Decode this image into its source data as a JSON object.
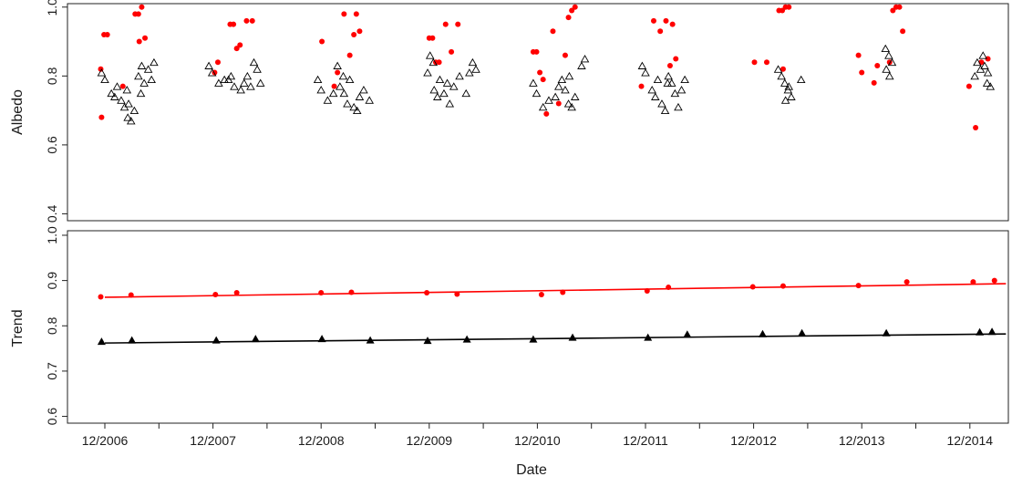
{
  "chart_data": [
    {
      "type": "scatter",
      "title": "",
      "xlabel": "",
      "ylabel": "Albedo",
      "ylim": [
        0.38,
        1.01
      ],
      "yticks": [
        "0.4",
        "0.6",
        "0.8",
        "1.0"
      ],
      "grid": false,
      "series": [
        {
          "marker": "filled-circle",
          "color": "#ff0000",
          "points": [
            [
              "12/2006",
              0.82
            ],
            [
              "12/2006",
              0.92
            ],
            [
              "12/2006",
              0.92
            ],
            [
              "12/2006",
              0.68
            ],
            [
              "2/2007",
              0.77
            ],
            [
              "3/2007",
              0.98
            ],
            [
              "4/2007",
              0.98
            ],
            [
              "4/2007",
              1.0
            ],
            [
              "4/2007",
              0.91
            ],
            [
              "4/2007",
              0.9
            ],
            [
              "12/2007",
              0.81
            ],
            [
              "1/2008",
              0.84
            ],
            [
              "2/2008",
              0.95
            ],
            [
              "2/2008",
              0.95
            ],
            [
              "3/2008",
              0.88
            ],
            [
              "3/2008",
              0.89
            ],
            [
              "4/2008",
              0.96
            ],
            [
              "4/2008",
              0.96
            ],
            [
              "12/2008",
              0.9
            ],
            [
              "1/2009",
              0.77
            ],
            [
              "2/2009",
              0.81
            ],
            [
              "3/2009",
              0.86
            ],
            [
              "3/2009",
              0.98
            ],
            [
              "4/2009",
              0.98
            ],
            [
              "4/2009",
              0.93
            ],
            [
              "4/2009",
              0.92
            ],
            [
              "12/2009",
              0.91
            ],
            [
              "12/2009",
              0.91
            ],
            [
              "1/2010",
              0.84
            ],
            [
              "1/2010",
              0.84
            ],
            [
              "2/2010",
              0.87
            ],
            [
              "2/2010",
              0.95
            ],
            [
              "3/2010",
              0.95
            ],
            [
              "12/2010",
              0.87
            ],
            [
              "12/2010",
              0.87
            ],
            [
              "12/2010",
              0.81
            ],
            [
              "1/2011",
              0.79
            ],
            [
              "1/2011",
              0.69
            ],
            [
              "2/2011",
              0.72
            ],
            [
              "2/2011",
              0.93
            ],
            [
              "3/2011",
              0.86
            ],
            [
              "3/2011",
              0.97
            ],
            [
              "4/2011",
              0.99
            ],
            [
              "4/2011",
              1.0
            ],
            [
              "12/2011",
              0.77
            ],
            [
              "1/2012",
              0.96
            ],
            [
              "2/2012",
              0.96
            ],
            [
              "2/2012",
              0.93
            ],
            [
              "3/2012",
              0.95
            ],
            [
              "3/2012",
              0.85
            ],
            [
              "3/2012",
              0.83
            ],
            [
              "12/2012",
              0.84
            ],
            [
              "1/2013",
              0.84
            ],
            [
              "3/2013",
              0.99
            ],
            [
              "3/2013",
              0.99
            ],
            [
              "4/2013",
              1.0
            ],
            [
              "4/2013",
              1.0
            ],
            [
              "3/2013",
              0.82
            ],
            [
              "12/2013",
              0.86
            ],
            [
              "12/2013",
              0.81
            ],
            [
              "1/2014",
              0.78
            ],
            [
              "2/2014",
              0.83
            ],
            [
              "3/2014",
              0.84
            ],
            [
              "3/2014",
              0.99
            ],
            [
              "4/2014",
              1.0
            ],
            [
              "4/2014",
              1.0
            ],
            [
              "5/2014",
              0.93
            ],
            [
              "12/2014",
              0.77
            ],
            [
              "1/2015",
              0.84
            ],
            [
              "1/2015",
              0.65
            ],
            [
              "2/2015",
              0.85
            ]
          ]
        },
        {
          "marker": "open-triangle",
          "color": "#000000",
          "points": [
            [
              "12/2006",
              0.81
            ],
            [
              "12/2006",
              0.79
            ],
            [
              "1/2007",
              0.77
            ],
            [
              "1/2007",
              0.75
            ],
            [
              "1/2007",
              0.74
            ],
            [
              "2/2007",
              0.76
            ],
            [
              "2/2007",
              0.73
            ],
            [
              "2/2007",
              0.71
            ],
            [
              "3/2007",
              0.68
            ],
            [
              "3/2007",
              0.67
            ],
            [
              "3/2007",
              0.7
            ],
            [
              "3/2007",
              0.72
            ],
            [
              "4/2007",
              0.75
            ],
            [
              "4/2007",
              0.78
            ],
            [
              "4/2007",
              0.8
            ],
            [
              "4/2007",
              0.83
            ],
            [
              "5/2007",
              0.84
            ],
            [
              "5/2007",
              0.82
            ],
            [
              "5/2007",
              0.79
            ],
            [
              "12/2007",
              0.83
            ],
            [
              "12/2007",
              0.81
            ],
            [
              "1/2008",
              0.79
            ],
            [
              "1/2008",
              0.78
            ],
            [
              "2/2008",
              0.8
            ],
            [
              "2/2008",
              0.77
            ],
            [
              "2/2008",
              0.79
            ],
            [
              "3/2008",
              0.76
            ],
            [
              "3/2008",
              0.78
            ],
            [
              "4/2008",
              0.8
            ],
            [
              "4/2008",
              0.77
            ],
            [
              "5/2008",
              0.84
            ],
            [
              "5/2008",
              0.82
            ],
            [
              "5/2008",
              0.78
            ],
            [
              "12/2008",
              0.79
            ],
            [
              "12/2008",
              0.76
            ],
            [
              "1/2009",
              0.75
            ],
            [
              "1/2009",
              0.73
            ],
            [
              "2/2009",
              0.77
            ],
            [
              "2/2009",
              0.8
            ],
            [
              "2/2009",
              0.83
            ],
            [
              "3/2009",
              0.79
            ],
            [
              "3/2009",
              0.75
            ],
            [
              "3/2009",
              0.72
            ],
            [
              "4/2009",
              0.74
            ],
            [
              "4/2009",
              0.71
            ],
            [
              "4/2009",
              0.7
            ],
            [
              "5/2009",
              0.73
            ],
            [
              "5/2009",
              0.76
            ],
            [
              "12/2009",
              0.86
            ],
            [
              "12/2009",
              0.84
            ],
            [
              "12/2009",
              0.81
            ],
            [
              "1/2010",
              0.79
            ],
            [
              "1/2010",
              0.76
            ],
            [
              "1/2010",
              0.74
            ],
            [
              "2/2010",
              0.72
            ],
            [
              "2/2010",
              0.75
            ],
            [
              "2/2010",
              0.78
            ],
            [
              "3/2010",
              0.8
            ],
            [
              "3/2010",
              0.77
            ],
            [
              "4/2010",
              0.75
            ],
            [
              "4/2010",
              0.81
            ],
            [
              "5/2010",
              0.84
            ],
            [
              "5/2010",
              0.82
            ],
            [
              "12/2010",
              0.78
            ],
            [
              "12/2010",
              0.75
            ],
            [
              "1/2011",
              0.73
            ],
            [
              "1/2011",
              0.71
            ],
            [
              "2/2011",
              0.74
            ],
            [
              "2/2011",
              0.77
            ],
            [
              "3/2011",
              0.79
            ],
            [
              "3/2011",
              0.76
            ],
            [
              "3/2011",
              0.72
            ],
            [
              "4/2011",
              0.71
            ],
            [
              "4/2011",
              0.74
            ],
            [
              "4/2011",
              0.8
            ],
            [
              "5/2011",
              0.83
            ],
            [
              "5/2011",
              0.85
            ],
            [
              "12/2011",
              0.83
            ],
            [
              "12/2011",
              0.81
            ],
            [
              "1/2012",
              0.79
            ],
            [
              "1/2012",
              0.76
            ],
            [
              "1/2012",
              0.74
            ],
            [
              "2/2012",
              0.78
            ],
            [
              "2/2012",
              0.72
            ],
            [
              "2/2012",
              0.7
            ],
            [
              "3/2012",
              0.8
            ],
            [
              "3/2012",
              0.78
            ],
            [
              "3/2012",
              0.75
            ],
            [
              "4/2012",
              0.71
            ],
            [
              "4/2012",
              0.76
            ],
            [
              "4/2012",
              0.79
            ],
            [
              "3/2013",
              0.82
            ],
            [
              "3/2013",
              0.8
            ],
            [
              "3/2013",
              0.78
            ],
            [
              "4/2013",
              0.76
            ],
            [
              "4/2013",
              0.74
            ],
            [
              "4/2013",
              0.73
            ],
            [
              "4/2013",
              0.77
            ],
            [
              "5/2013",
              0.79
            ],
            [
              "3/2014",
              0.88
            ],
            [
              "3/2014",
              0.86
            ],
            [
              "3/2014",
              0.84
            ],
            [
              "3/2014",
              0.82
            ],
            [
              "3/2014",
              0.8
            ],
            [
              "1/2015",
              0.86
            ],
            [
              "1/2015",
              0.84
            ],
            [
              "1/2015",
              0.82
            ],
            [
              "1/2015",
              0.8
            ],
            [
              "2/2015",
              0.78
            ],
            [
              "2/2015",
              0.77
            ],
            [
              "2/2015",
              0.83
            ],
            [
              "2/2015",
              0.81
            ]
          ]
        }
      ]
    },
    {
      "type": "scatter",
      "title": "",
      "xlabel": "Date",
      "ylabel": "Trend",
      "xticks": [
        "12/2006",
        "12/2007",
        "12/2008",
        "12/2009",
        "12/2010",
        "12/2011",
        "12/2012",
        "12/2013",
        "12/2014"
      ],
      "ylim": [
        0.585,
        1.01
      ],
      "yticks": [
        "0.6",
        "0.7",
        "0.8",
        "0.9",
        "1.0"
      ],
      "grid": false,
      "series": [
        {
          "marker": "filled-circle",
          "color": "#ff0000",
          "points": [
            [
              "12/2006",
              0.864
            ],
            [
              "3/2007",
              0.868
            ],
            [
              "12/2007",
              0.869
            ],
            [
              "3/2008",
              0.873
            ],
            [
              "12/2008",
              0.873
            ],
            [
              "3/2009",
              0.874
            ],
            [
              "12/2009",
              0.873
            ],
            [
              "3/2010",
              0.87
            ],
            [
              "12/2010",
              0.869
            ],
            [
              "3/2011",
              0.874
            ],
            [
              "12/2011",
              0.877
            ],
            [
              "3/2012",
              0.885
            ],
            [
              "12/2012",
              0.886
            ],
            [
              "3/2013",
              0.888
            ],
            [
              "12/2013",
              0.889
            ],
            [
              "5/2014",
              0.897
            ],
            [
              "12/2014",
              0.897
            ],
            [
              "3/2015",
              0.9
            ]
          ],
          "trend_line": [
            [
              "12/2006",
              0.863
            ],
            [
              "4/2015",
              0.893
            ]
          ]
        },
        {
          "marker": "filled-triangle",
          "color": "#000000",
          "points": [
            [
              "12/2006",
              0.766
            ],
            [
              "3/2007",
              0.769
            ],
            [
              "12/2007",
              0.769
            ],
            [
              "5/2008",
              0.772
            ],
            [
              "12/2008",
              0.772
            ],
            [
              "5/2009",
              0.769
            ],
            [
              "12/2009",
              0.768
            ],
            [
              "4/2010",
              0.771
            ],
            [
              "12/2010",
              0.771
            ],
            [
              "4/2011",
              0.775
            ],
            [
              "12/2011",
              0.775
            ],
            [
              "5/2012",
              0.782
            ],
            [
              "1/2013",
              0.783
            ],
            [
              "5/2013",
              0.785
            ],
            [
              "3/2014",
              0.785
            ],
            [
              "1/2015",
              0.787
            ],
            [
              "2/2015",
              0.788
            ]
          ],
          "trend_line": [
            [
              "12/2006",
              0.762
            ],
            [
              "4/2015",
              0.782
            ]
          ]
        }
      ]
    }
  ]
}
